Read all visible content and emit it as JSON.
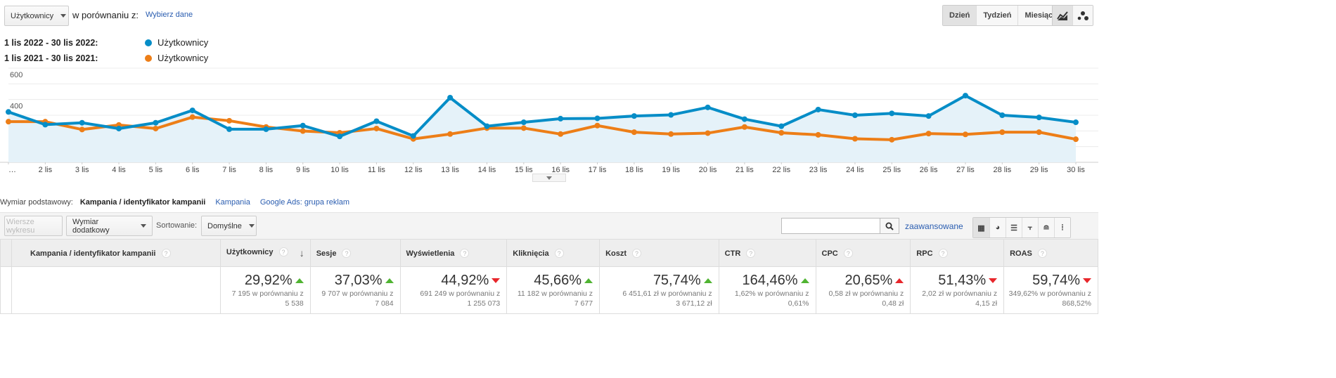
{
  "header": {
    "metric_select": "Użytkownicy",
    "compare_label": "w porównaniu z:",
    "choose_data": "Wybierz dane",
    "period_buttons": [
      "Dzień",
      "Tydzień",
      "Miesiąc"
    ],
    "active_period": "Dzień"
  },
  "legend": [
    {
      "range": "1 lis 2022 - 30 lis 2022:",
      "label": "Użytkownicy",
      "color": "#058dc7"
    },
    {
      "range": "1 lis 2021 - 30 lis 2021:",
      "label": "Użytkownicy",
      "color": "#ed7e17"
    }
  ],
  "chart_data": {
    "type": "line",
    "title": "",
    "xlabel": "",
    "ylabel": "",
    "ylim": [
      0,
      600
    ],
    "grid": true,
    "y_ticks": [
      200,
      400,
      600
    ],
    "x": [
      "…",
      "2 lis",
      "3 lis",
      "4 lis",
      "5 lis",
      "6 lis",
      "7 lis",
      "8 lis",
      "9 lis",
      "10 lis",
      "11 lis",
      "12 lis",
      "13 lis",
      "14 lis",
      "15 lis",
      "16 lis",
      "17 lis",
      "18 lis",
      "19 lis",
      "20 lis",
      "21 lis",
      "22 lis",
      "23 lis",
      "24 lis",
      "25 lis",
      "26 lis",
      "27 lis",
      "28 lis",
      "29 lis",
      "30 lis"
    ],
    "series": [
      {
        "name": "1 lis 2022 - 30 lis 2022: Użytkownicy",
        "color": "#058dc7",
        "values": [
          321,
          240,
          252,
          215,
          252,
          331,
          211,
          211,
          234,
          165,
          262,
          168,
          412,
          230,
          255,
          278,
          280,
          295,
          302,
          350,
          275,
          230,
          336,
          300,
          312,
          295,
          425,
          300,
          286,
          255
        ]
      },
      {
        "name": "1 lis 2021 - 30 lis 2021: Użytkownicy",
        "color": "#ed7e17",
        "values": [
          259,
          259,
          209,
          238,
          215,
          288,
          265,
          225,
          199,
          188,
          215,
          149,
          180,
          218,
          218,
          180,
          234,
          192,
          180,
          186,
          225,
          188,
          175,
          150,
          144,
          183,
          178,
          192,
          192,
          147
        ]
      }
    ]
  },
  "dimension": {
    "label": "Wymiar podstawowy:",
    "active": "Kampania / identyfikator kampanii",
    "options": [
      "Kampania",
      "Google Ads: grupa reklam"
    ]
  },
  "toolbar": {
    "plot_rows": "Wiersze wykresu",
    "secondary": "Wymiar dodatkowy",
    "sort_label": "Sortowanie:",
    "sort_value": "Domyślne",
    "search_value": "",
    "advanced": "zaawansowane"
  },
  "table": {
    "first_col": "Kampania / identyfikator kampanii",
    "help": "?",
    "columns": [
      {
        "name": "Użytkownicy",
        "pct": "29,92%",
        "dir": "up",
        "color": "#50b432",
        "cmp": "7 195 w porównaniu z",
        "prev": "5 538"
      },
      {
        "name": "Sesje",
        "pct": "37,03%",
        "dir": "up",
        "color": "#50b432",
        "cmp": "9 707 w porównaniu z",
        "prev": "7 084"
      },
      {
        "name": "Wyświetlenia",
        "pct": "44,92%",
        "dir": "down",
        "color": "#e8262b",
        "cmp": "691 249 w porównaniu z",
        "prev": "1 255 073"
      },
      {
        "name": "Kliknięcia",
        "pct": "45,66%",
        "dir": "up",
        "color": "#50b432",
        "cmp": "11 182 w porównaniu z",
        "prev": "7 677"
      },
      {
        "name": "Koszt",
        "pct": "75,74%",
        "dir": "up",
        "color": "#50b432",
        "cmp": "6 451,61 zł w porównaniu z",
        "prev": "3 671,12 zł"
      },
      {
        "name": "CTR",
        "pct": "164,46%",
        "dir": "up",
        "color": "#50b432",
        "cmp": "1,62% w porównaniu z",
        "prev": "0,61%"
      },
      {
        "name": "CPC",
        "pct": "20,65%",
        "dir": "up",
        "color": "#e8262b",
        "cmp": "0,58 zł w porównaniu z",
        "prev": "0,48 zł"
      },
      {
        "name": "RPC",
        "pct": "51,43%",
        "dir": "down",
        "color": "#e8262b",
        "cmp": "2,02 zł w porównaniu z",
        "prev": "4,15 zł"
      },
      {
        "name": "ROAS",
        "pct": "59,74%",
        "dir": "down",
        "color": "#e8262b",
        "cmp": "349,62% w porównaniu z",
        "prev": "868,52%"
      }
    ]
  }
}
